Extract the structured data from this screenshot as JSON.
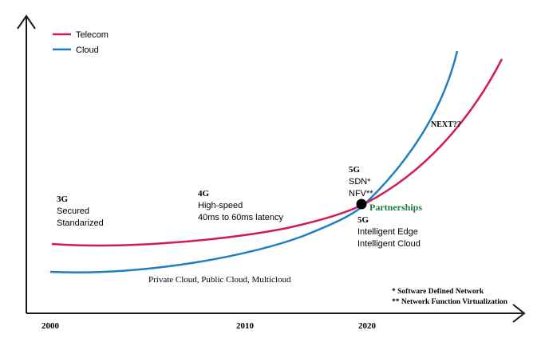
{
  "legend": {
    "items": [
      {
        "label": "Telecom",
        "color": "#d2195a"
      },
      {
        "label": "Cloud",
        "color": "#1e7fc1"
      }
    ]
  },
  "axis": {
    "x_ticks": [
      "2000",
      "2010",
      "2020"
    ]
  },
  "annotations": {
    "g3": {
      "title": "3G",
      "lines": [
        "Secured",
        "Standarized"
      ]
    },
    "g4": {
      "title": "4G",
      "lines": [
        "High-speed",
        "40ms to 60ms latency"
      ]
    },
    "g5_top": {
      "title": "5G",
      "lines": [
        "SDN*",
        "NFV**"
      ]
    },
    "g5_bottom": {
      "title": "5G",
      "lines": [
        "Intelligent Edge",
        "Intelligent Cloud"
      ]
    },
    "next": "NEXT??",
    "partnerships": "Partnerships",
    "cloud_types": "Private Cloud, Public Cloud, Multicloud"
  },
  "footnotes": [
    "* Software Defined Network",
    "** Network Function Virtualization"
  ],
  "colors": {
    "telecom": "#d2195a",
    "cloud": "#1e7fc1",
    "partnerships": "#1f7a3a",
    "axis": "#1a1a1a"
  }
}
